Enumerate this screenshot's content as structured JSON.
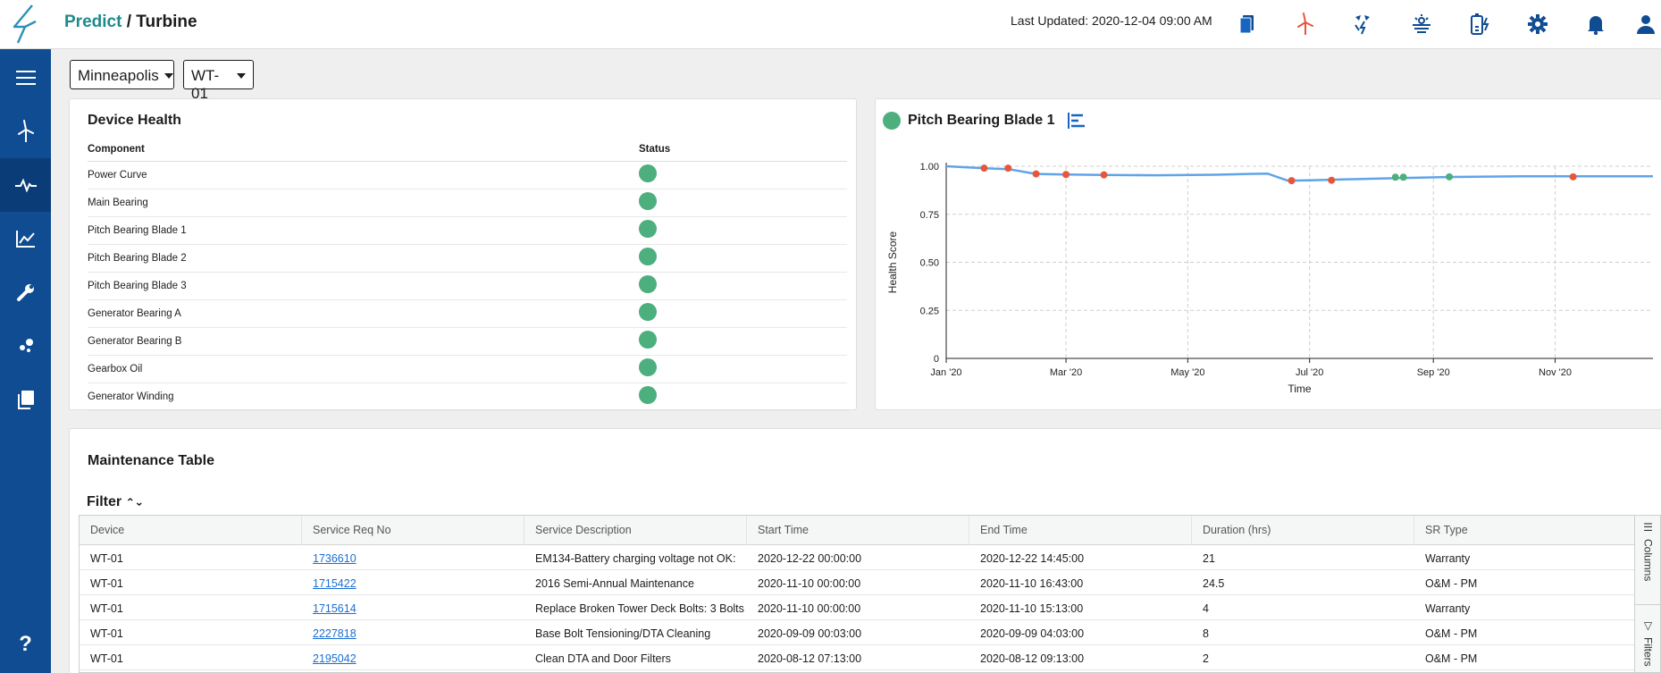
{
  "header": {
    "brand_primary": "Predict",
    "brand_separator": "/",
    "brand_secondary": "Turbine",
    "last_updated": "Last Updated: 2020-12-04 09:00 AM",
    "icons": [
      "documents-icon",
      "wind-turbine-icon",
      "wind-power-icon",
      "solar-icon",
      "battery-icon",
      "gear-icon",
      "bell-icon",
      "user-icon"
    ],
    "accent_color": "#1f8a8a",
    "sidebar_color": "#0f4c91"
  },
  "sidebar": {
    "items": [
      "menu-icon",
      "turbine-icon",
      "pulse-icon",
      "chart-line-icon",
      "wrench-icon",
      "scatter-icon",
      "copy-icon",
      "help-icon"
    ],
    "help_label": "?"
  },
  "selectors": {
    "location": "Minneapolis",
    "device": "WT-01"
  },
  "device_health": {
    "title": "Device Health",
    "col_component": "Component",
    "col_status": "Status",
    "status_color": "#4caf7d",
    "rows": [
      {
        "component": "Power Curve",
        "status": "healthy"
      },
      {
        "component": "Main Bearing",
        "status": "healthy"
      },
      {
        "component": "Pitch Bearing Blade 1",
        "status": "healthy"
      },
      {
        "component": "Pitch Bearing Blade 2",
        "status": "healthy"
      },
      {
        "component": "Pitch Bearing Blade 3",
        "status": "healthy"
      },
      {
        "component": "Generator Bearing A",
        "status": "healthy"
      },
      {
        "component": "Generator Bearing B",
        "status": "healthy"
      },
      {
        "component": "Gearbox Oil",
        "status": "healthy"
      },
      {
        "component": "Generator Winding",
        "status": "healthy"
      }
    ]
  },
  "chart_panel": {
    "title": "Pitch Bearing Blade 1",
    "status_color": "#4caf7d"
  },
  "chart_data": {
    "type": "line",
    "title": "Pitch Bearing Blade 1",
    "xlabel": "Time",
    "ylabel": "Health Score",
    "x_tick_labels": [
      "Jan '20",
      "Mar '20",
      "May '20",
      "Jul '20",
      "Sep '20",
      "Nov '20"
    ],
    "y_tick_labels": [
      "0",
      "0.25",
      "0.50",
      "0.75",
      "1.00"
    ],
    "ylim": [
      0,
      1.0
    ],
    "xlim": [
      "2020-01-01",
      "2020-12-20"
    ],
    "grid": true,
    "line_color": "#5fa4e8",
    "series": [
      {
        "values": [
          {
            "x": "2020-01-01",
            "y": 1.0
          },
          {
            "x": "2020-01-20",
            "y": 0.99
          },
          {
            "x": "2020-02-01",
            "y": 0.985
          },
          {
            "x": "2020-02-15",
            "y": 0.96
          },
          {
            "x": "2020-03-01",
            "y": 0.957
          },
          {
            "x": "2020-03-20",
            "y": 0.955
          },
          {
            "x": "2020-04-15",
            "y": 0.953
          },
          {
            "x": "2020-05-15",
            "y": 0.956
          },
          {
            "x": "2020-06-10",
            "y": 0.962
          },
          {
            "x": "2020-06-20",
            "y": 0.925
          },
          {
            "x": "2020-07-01",
            "y": 0.927
          },
          {
            "x": "2020-07-20",
            "y": 0.932
          },
          {
            "x": "2020-08-15",
            "y": 0.938
          },
          {
            "x": "2020-09-10",
            "y": 0.944
          },
          {
            "x": "2020-10-15",
            "y": 0.948
          },
          {
            "x": "2020-12-20",
            "y": 0.948
          }
        ]
      }
    ],
    "markers": [
      {
        "x": "2020-01-20",
        "y": 0.99,
        "color": "#e8563a"
      },
      {
        "x": "2020-02-01",
        "y": 0.99,
        "color": "#e8563a"
      },
      {
        "x": "2020-02-15",
        "y": 0.96,
        "color": "#e8563a"
      },
      {
        "x": "2020-03-01",
        "y": 0.957,
        "color": "#e8563a"
      },
      {
        "x": "2020-03-20",
        "y": 0.955,
        "color": "#e8563a"
      },
      {
        "x": "2020-06-22",
        "y": 0.925,
        "color": "#e8563a"
      },
      {
        "x": "2020-07-12",
        "y": 0.927,
        "color": "#e8563a"
      },
      {
        "x": "2020-08-13",
        "y": 0.943,
        "color": "#4caf7d"
      },
      {
        "x": "2020-08-17",
        "y": 0.943,
        "color": "#4caf7d"
      },
      {
        "x": "2020-09-09",
        "y": 0.945,
        "color": "#4caf7d"
      },
      {
        "x": "2020-11-10",
        "y": 0.945,
        "color": "#e8563a"
      }
    ]
  },
  "maintenance": {
    "title": "Maintenance Table",
    "filter_label": "Filter",
    "side_tabs": [
      "Columns",
      "Filters"
    ],
    "columns": [
      "Device",
      "Service Req No",
      "Service Description",
      "Start Time",
      "End Time",
      "Duration (hrs)",
      "SR Type"
    ],
    "rows": [
      [
        "WT-01",
        "1736610",
        "EM134-Battery charging voltage not OK: ",
        "2020-12-22 00:00:00",
        "2020-12-22 14:45:00",
        "21",
        "Warranty"
      ],
      [
        "WT-01",
        "1715422",
        "2016 Semi-Annual Maintenance",
        "2020-11-10 00:00:00",
        "2020-11-10 16:43:00",
        "24.5",
        "O&M - PM"
      ],
      [
        "WT-01",
        "1715614",
        "Replace Broken Tower Deck Bolts: 3 Bolts",
        "2020-11-10 00:00:00",
        "2020-11-10 15:13:00",
        "4",
        "Warranty"
      ],
      [
        "WT-01",
        "2227818",
        "Base Bolt Tensioning/DTA Cleaning",
        "2020-09-09 00:03:00",
        "2020-09-09 04:03:00",
        "8",
        "O&M - PM"
      ],
      [
        "WT-01",
        "2195042",
        "Clean DTA and Door Filters",
        "2020-08-12 07:13:00",
        "2020-08-12 09:13:00",
        "2",
        "O&M - PM"
      ]
    ]
  }
}
